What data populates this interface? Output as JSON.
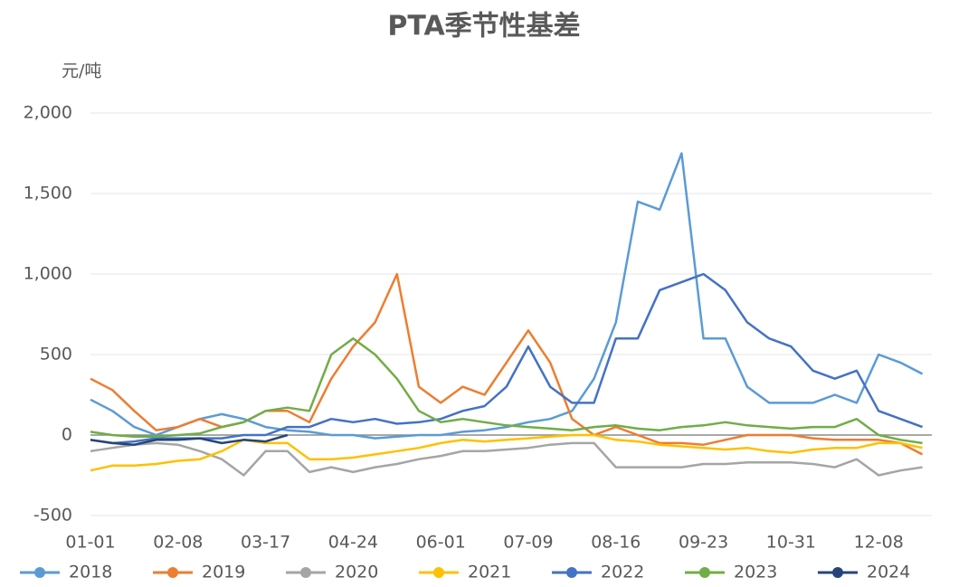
{
  "chart_data": {
    "type": "line",
    "title": "PTA季节性基差",
    "y_label": "元/吨",
    "categories": [
      "01-01",
      null,
      null,
      null,
      "02-08",
      null,
      null,
      null,
      "03-17",
      null,
      null,
      null,
      "04-24",
      null,
      null,
      null,
      "06-01",
      null,
      null,
      null,
      "07-09",
      null,
      null,
      null,
      "08-16",
      null,
      null,
      null,
      "09-23",
      null,
      null,
      null,
      "10-31",
      null,
      null,
      null,
      "12-08",
      null,
      null
    ],
    "ylim": [
      -500,
      2000
    ],
    "yticks": [
      {
        "value": -500,
        "label": "-500"
      },
      0,
      500,
      {
        "value": 1000,
        "label": "1,000"
      },
      {
        "value": 1500,
        "label": "1,500"
      },
      {
        "value": 2000,
        "label": "2,000"
      }
    ],
    "grid": true,
    "legend": "bottom",
    "series": [
      {
        "name": "2018",
        "color": "#5b9bd5",
        "values": [
          220,
          150,
          50,
          0,
          50,
          100,
          130,
          100,
          50,
          30,
          20,
          0,
          0,
          -20,
          -10,
          0,
          0,
          20,
          30,
          50,
          80,
          100,
          150,
          350,
          700,
          1450,
          1400,
          1750,
          600,
          600,
          300,
          200,
          200,
          200,
          250,
          200,
          500,
          450,
          380
        ]
      },
      {
        "name": "2019",
        "color": "#ed7d31",
        "values": [
          350,
          280,
          150,
          30,
          50,
          100,
          50,
          80,
          150,
          150,
          80,
          350,
          550,
          700,
          1000,
          300,
          200,
          300,
          250,
          450,
          650,
          450,
          100,
          0,
          50,
          0,
          -50,
          -50,
          -60,
          -30,
          0,
          0,
          0,
          -20,
          -30,
          -30,
          -30,
          -50,
          -120
        ]
      },
      {
        "name": "2020",
        "color": "#a5a5a5",
        "values": [
          -100,
          -80,
          -60,
          -50,
          -60,
          -100,
          -150,
          -250,
          -100,
          -100,
          -230,
          -200,
          -230,
          -200,
          -180,
          -150,
          -130,
          -100,
          -100,
          -90,
          -80,
          -60,
          -50,
          -50,
          -200,
          -200,
          -200,
          -200,
          -180,
          -180,
          -170,
          -170,
          -170,
          -180,
          -200,
          -150,
          -250,
          -220,
          -200
        ]
      },
      {
        "name": "2021",
        "color": "#ffc000",
        "values": [
          -220,
          -190,
          -190,
          -180,
          -160,
          -150,
          -100,
          -30,
          -50,
          -50,
          -150,
          -150,
          -140,
          -120,
          -100,
          -80,
          -50,
          -30,
          -40,
          -30,
          -20,
          -10,
          0,
          0,
          -30,
          -40,
          -60,
          -70,
          -80,
          -90,
          -80,
          -100,
          -110,
          -90,
          -80,
          -80,
          -50,
          -50,
          -80
        ]
      },
      {
        "name": "2022",
        "color": "#4472c4",
        "values": [
          -30,
          -50,
          -40,
          -20,
          -20,
          -20,
          -20,
          0,
          0,
          50,
          50,
          100,
          80,
          100,
          70,
          80,
          100,
          150,
          180,
          300,
          550,
          300,
          200,
          200,
          600,
          600,
          900,
          950,
          1000,
          900,
          700,
          600,
          550,
          400,
          350,
          400,
          150,
          100,
          50
        ]
      },
      {
        "name": "2023",
        "color": "#70ad47",
        "values": [
          20,
          0,
          -10,
          -10,
          0,
          10,
          50,
          80,
          150,
          170,
          150,
          500,
          600,
          500,
          350,
          150,
          80,
          100,
          80,
          60,
          50,
          40,
          30,
          50,
          60,
          40,
          30,
          50,
          60,
          80,
          60,
          50,
          40,
          50,
          50,
          100,
          0,
          -30,
          -50
        ]
      },
      {
        "name": "2024",
        "color": "#264478",
        "values": [
          -30,
          -50,
          -60,
          -30,
          -30,
          -20,
          -50,
          -30,
          -40,
          0,
          null,
          null,
          null,
          null,
          null,
          null,
          null,
          null,
          null,
          null,
          null,
          null,
          null,
          null,
          null,
          null,
          null,
          null,
          null,
          null,
          null,
          null,
          null,
          null,
          null,
          null,
          null,
          null,
          null
        ]
      }
    ]
  }
}
